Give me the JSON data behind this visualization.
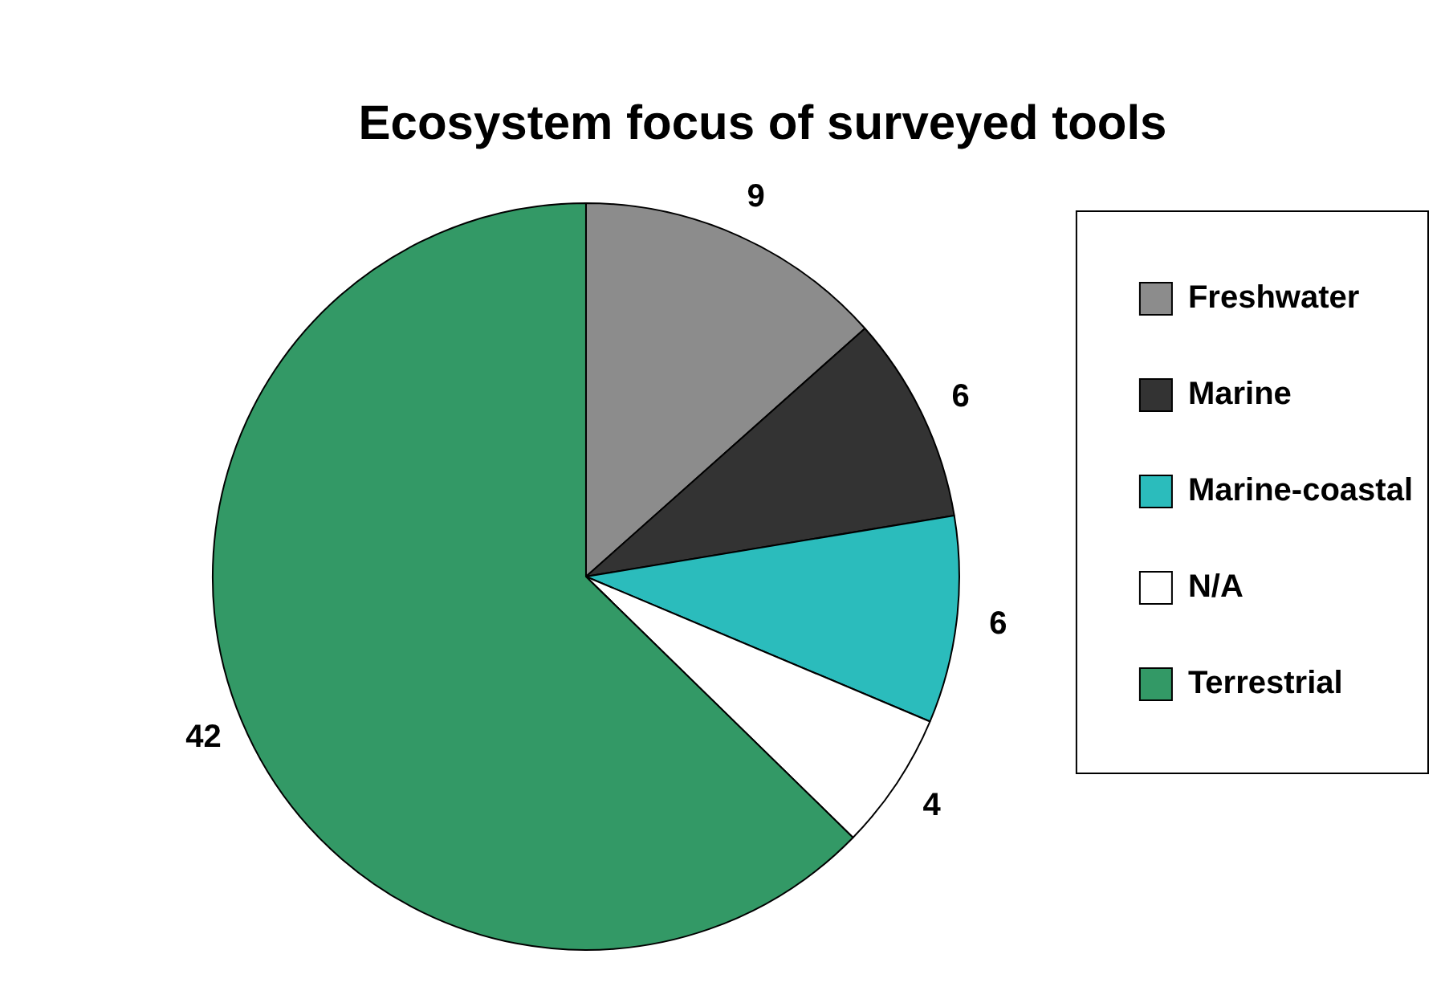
{
  "chart_data": {
    "type": "pie",
    "title": "Ecosystem focus of surveyed tools",
    "categories": [
      "Freshwater",
      "Marine",
      "Marine-coastal",
      "N/A",
      "Terrestrial"
    ],
    "values": [
      9,
      6,
      6,
      4,
      42
    ],
    "colors": [
      "#8c8c8c",
      "#333333",
      "#2bbcbc",
      "#ffffff",
      "#339966"
    ],
    "data_labels": true,
    "legend": "right"
  }
}
